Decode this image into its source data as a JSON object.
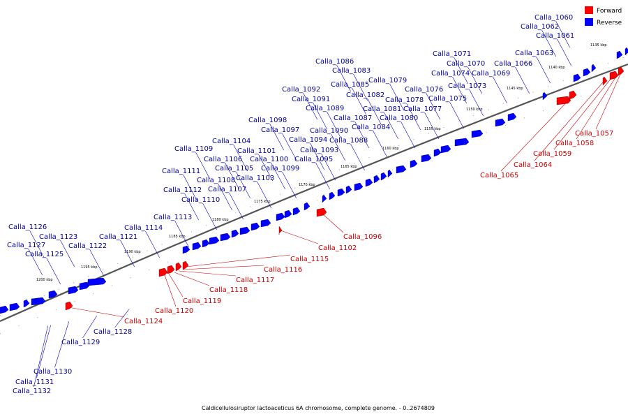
{
  "legend": {
    "forward_label": "Forward",
    "reverse_label": "Reverse",
    "forward_color": "#ff0000",
    "reverse_color": "#0000ff"
  },
  "caption": "Caldicellulosiruptor lactoaceticus 6A chromosome, complete genome. - 0..2674809",
  "colors": {
    "backbone": "#555555",
    "forward_gene": "#ff0000",
    "reverse_gene": "#0000ff",
    "forward_label": "#cc0000",
    "reverse_label": "#000099"
  },
  "tick_labels": [
    "1135 kbp",
    "1140 kbp",
    "1145 kbp",
    "1150 kbp",
    "1155 kbp",
    "1160 kbp",
    "1165 kbp",
    "1170 kbp",
    "1175 kbp",
    "1180 kbp",
    "1185 kbp",
    "1190 kbp",
    "1195 kbp",
    "1200 kbp"
  ],
  "forward_genes": [
    "Calla_1057",
    "Calla_1058",
    "Calla_1059",
    "Calla_1064",
    "Calla_1065",
    "Calla_1096",
    "Calla_1102",
    "Calla_1115",
    "Calla_1116",
    "Calla_1117",
    "Calla_1118",
    "Calla_1119",
    "Calla_1120",
    "Calla_1124"
  ],
  "reverse_genes": [
    "Calla_1060",
    "Calla_1062",
    "Calla_1061",
    "Calla_1063",
    "Calla_1066",
    "Calla_1071",
    "Calla_1070",
    "Calla_1074",
    "Calla_1069",
    "Calla_1073",
    "Calla_1086",
    "Calla_1083",
    "Calla_1079",
    "Calla_1085",
    "Calla_1076",
    "Calla_1092",
    "Calla_1082",
    "Calla_1091",
    "Calla_1078",
    "Calla_1075",
    "Calla_1089",
    "Calla_1081",
    "Calla_1077",
    "Calla_1087",
    "Calla_1080",
    "Calla_1098",
    "Calla_1084",
    "Calla_1097",
    "Calla_1090",
    "Calla_1094",
    "Calla_1088",
    "Calla_1104",
    "Calla_1101",
    "Calla_1093",
    "Calla_1109",
    "Calla_1106",
    "Calla_1100",
    "Calla_1095",
    "Calla_1105",
    "Calla_1099",
    "Calla_1111",
    "Calla_1108",
    "Calla_1103",
    "Calla_1112",
    "Calla_1107",
    "Calla_1110",
    "Calla_1113",
    "Calla_1114",
    "Calla_1126",
    "Calla_1123",
    "Calla_1121",
    "Calla_1127",
    "Calla_1122",
    "Calla_1125",
    "Calla_1128",
    "Calla_1129",
    "Calla_1130",
    "Calla_1131",
    "Calla_1132"
  ]
}
